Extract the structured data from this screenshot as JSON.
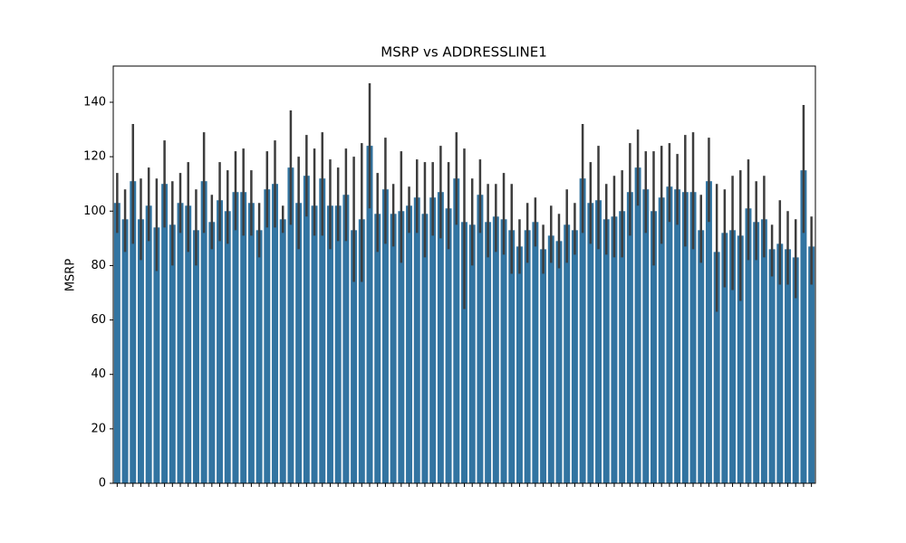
{
  "chart_data": {
    "type": "bar",
    "title": "MSRP vs ADDRESSLINE1",
    "y_label": "MSRP",
    "categories": [
      null,
      null,
      null,
      null,
      null,
      null,
      null,
      null,
      null,
      null,
      null,
      null,
      null,
      null,
      null,
      null,
      null,
      null,
      null,
      null,
      null,
      null,
      null,
      null,
      null,
      null,
      null,
      null,
      null,
      null,
      null,
      null,
      null,
      null,
      null,
      null,
      null,
      null,
      null,
      null,
      null,
      null,
      null,
      null,
      null,
      null,
      null,
      null,
      null,
      null,
      null,
      null,
      null,
      null,
      null,
      null,
      null,
      null,
      null,
      null,
      null,
      null,
      null,
      null,
      null,
      null,
      null,
      null,
      null,
      null,
      null,
      null,
      null,
      null,
      null,
      null,
      null,
      null,
      null,
      null,
      null,
      null,
      null,
      null,
      null,
      null,
      null,
      null,
      null
    ],
    "values": [
      103,
      97,
      111,
      97,
      102,
      94,
      110,
      95,
      103,
      102,
      93,
      111,
      96,
      104,
      100,
      107,
      107,
      103,
      93,
      108,
      110,
      97,
      116,
      103,
      113,
      102,
      112,
      102,
      102,
      106,
      93,
      97,
      124,
      99,
      108,
      99,
      100,
      102,
      105,
      99,
      105,
      107,
      101,
      112,
      96,
      95,
      106,
      96,
      98,
      97,
      93,
      87,
      93,
      96,
      86,
      91,
      89,
      95,
      93,
      112,
      103,
      104,
      97,
      98,
      100,
      107,
      116,
      108,
      100,
      105,
      109,
      108,
      107,
      107,
      93,
      111,
      85,
      92,
      93,
      91,
      101,
      96,
      97,
      86,
      88,
      86,
      83,
      115,
      87
    ],
    "error_low": [
      92,
      85,
      88,
      82,
      89,
      78,
      94,
      80,
      92,
      85,
      80,
      92,
      86,
      89,
      88,
      93,
      91,
      91,
      83,
      94,
      94,
      92,
      95,
      86,
      98,
      91,
      91,
      86,
      89,
      89,
      74,
      74,
      101,
      85,
      88,
      87,
      81,
      92,
      92,
      83,
      91,
      90,
      86,
      95,
      64,
      80,
      92,
      83,
      85,
      84,
      77,
      77,
      81,
      87,
      77,
      81,
      79,
      81,
      84,
      92,
      88,
      86,
      84,
      83,
      83,
      91,
      102,
      92,
      80,
      88,
      96,
      95,
      87,
      86,
      81,
      96,
      63,
      72,
      71,
      67,
      82,
      82,
      83,
      76,
      73,
      73,
      68,
      92,
      73
    ],
    "error_high": [
      114,
      108,
      132,
      112,
      116,
      112,
      126,
      111,
      114,
      118,
      108,
      129,
      106,
      118,
      115,
      122,
      123,
      115,
      103,
      122,
      126,
      102,
      137,
      120,
      128,
      123,
      129,
      119,
      116,
      123,
      120,
      125,
      147,
      114,
      127,
      110,
      122,
      109,
      119,
      118,
      118,
      124,
      118,
      129,
      123,
      112,
      119,
      110,
      110,
      114,
      110,
      97,
      103,
      105,
      95,
      102,
      99,
      108,
      103,
      132,
      118,
      124,
      110,
      113,
      115,
      125,
      130,
      122,
      122,
      124,
      125,
      121,
      128,
      129,
      106,
      127,
      110,
      108,
      113,
      115,
      119,
      111,
      113,
      95,
      104,
      100,
      97,
      139,
      98
    ],
    "color": "#3274a1",
    "error_color": "#3d3d3d",
    "ylim": [
      0,
      153.3
    ],
    "yticks": [
      0,
      20,
      40,
      60,
      80,
      100,
      120,
      140
    ]
  }
}
